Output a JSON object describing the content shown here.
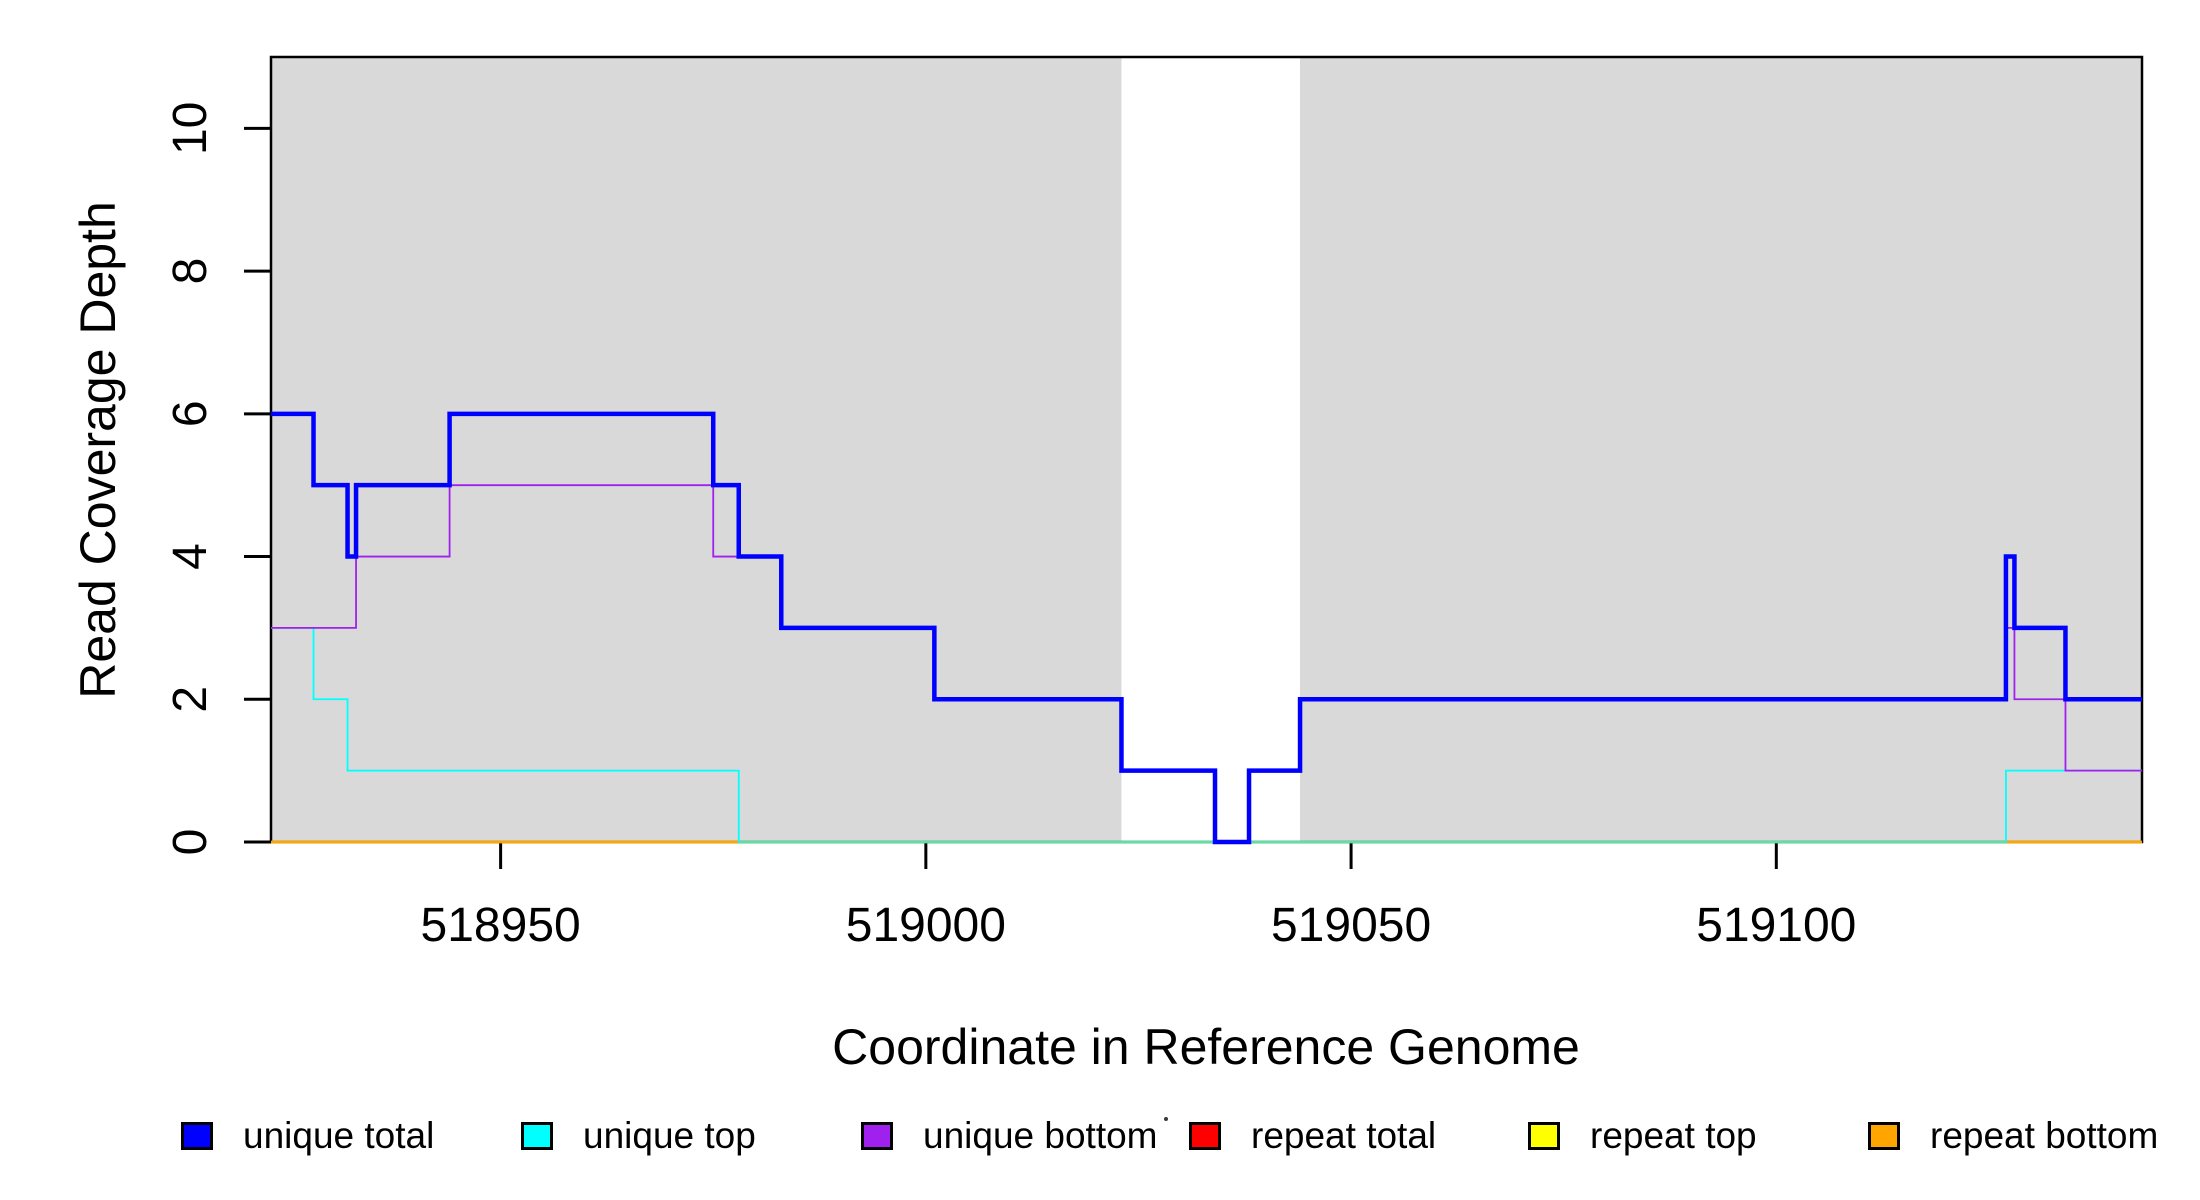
{
  "figure": {
    "x_axis_title": "Coordinate in Reference Genome",
    "y_axis_title": "Read Coverage Depth"
  },
  "colors": {
    "background": "#FFFFFF",
    "repeat_band": "#D9D9D9",
    "axis": "#000000",
    "unique_total": "#0000FF",
    "unique_top": "#00FFFF",
    "unique_bottom": "#A020F0",
    "repeat_total": "#FF0000",
    "repeat_top": "#FFFF00",
    "repeat_bottom": "#FFA500"
  },
  "legend": {
    "items": [
      {
        "label": "unique total",
        "color": "#0000FF"
      },
      {
        "label": "unique top",
        "color": "#00FFFF"
      },
      {
        "label": "unique bottom",
        "color": "#A020F0"
      },
      {
        "label": "repeat total",
        "color": "#FF0000"
      },
      {
        "label": "repeat top",
        "color": "#FFFF00"
      },
      {
        "label": "repeat bottom",
        "color": "#FFA500"
      }
    ]
  },
  "chart_data": {
    "type": "line",
    "subtype": "step",
    "title": "",
    "xlabel": "Coordinate in Reference Genome",
    "ylabel": "Read Coverage Depth",
    "xlim": [
      518923,
      519143
    ],
    "ylim": [
      0,
      11
    ],
    "x_ticks": [
      518950,
      519000,
      519050,
      519100
    ],
    "y_ticks": [
      0,
      2,
      4,
      6,
      8,
      10
    ],
    "grid": false,
    "legend_position": "bottom",
    "shaded_regions": [
      {
        "name": "repeat-region-left",
        "x0": 518923,
        "x1": 519023,
        "color": "#D9D9D9"
      },
      {
        "name": "repeat-region-right",
        "x0": 519044,
        "x1": 519143,
        "color": "#D9D9D9"
      }
    ],
    "series": [
      {
        "name": "repeat total",
        "color": "#FF0000",
        "width": 2,
        "points": [
          [
            518923,
            0
          ]
        ]
      },
      {
        "name": "repeat top",
        "color": "#FFFF00",
        "width": 2,
        "points": [
          [
            518923,
            0
          ]
        ]
      },
      {
        "name": "repeat bottom",
        "color": "#FFA500",
        "width": 2.8,
        "points": [
          [
            518923,
            0
          ]
        ]
      },
      {
        "name": "unique top",
        "color": "#00FFFF",
        "width": 1.8,
        "points": [
          [
            518923,
            3
          ],
          [
            518928,
            2
          ],
          [
            518932,
            1
          ],
          [
            518978,
            0
          ],
          [
            519127,
            1
          ]
        ]
      },
      {
        "name": "unique bottom",
        "color": "#A020F0",
        "width": 1.8,
        "points": [
          [
            518923,
            3
          ],
          [
            518933,
            4
          ],
          [
            518944,
            5
          ],
          [
            518975,
            4
          ],
          [
            518983,
            3
          ],
          [
            519001,
            2
          ],
          [
            519023,
            1
          ],
          [
            519034,
            0
          ],
          [
            519038,
            1
          ],
          [
            519044,
            2
          ],
          [
            519127,
            3
          ],
          [
            519128,
            2
          ],
          [
            519134,
            1
          ]
        ]
      },
      {
        "name": "unique total",
        "color": "#0000FF",
        "width": 4.5,
        "points": [
          [
            518923,
            6
          ],
          [
            518928,
            5
          ],
          [
            518932,
            4
          ],
          [
            518933,
            5
          ],
          [
            518944,
            6
          ],
          [
            518975,
            5
          ],
          [
            518978,
            4
          ],
          [
            518983,
            3
          ],
          [
            519001,
            2
          ],
          [
            519023,
            1
          ],
          [
            519034,
            0
          ],
          [
            519038,
            1
          ],
          [
            519044,
            2
          ],
          [
            519127,
            4
          ],
          [
            519128,
            3
          ],
          [
            519134,
            2
          ]
        ]
      }
    ]
  }
}
